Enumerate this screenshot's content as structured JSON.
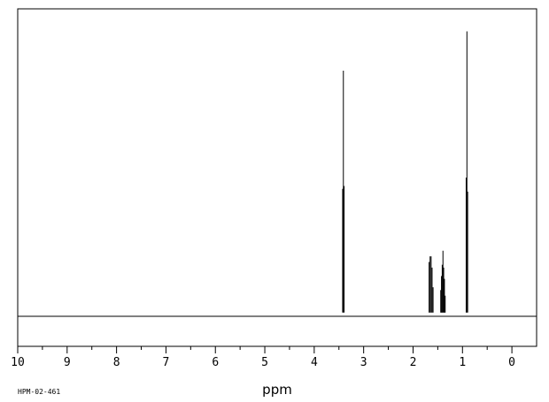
{
  "chart_data": {
    "type": "line",
    "xlabel": "ppm",
    "xlim": [
      10,
      -0.5
    ],
    "x_reversed": true,
    "ylim": [
      -0.12,
      1.08
    ],
    "grid": false,
    "x_ticks": [
      "10",
      "9",
      "8",
      "7",
      "6",
      "5",
      "4",
      "3",
      "2",
      "1",
      "0"
    ],
    "x_tick_values": [
      10,
      9,
      8,
      7,
      6,
      5,
      4,
      3,
      2,
      1,
      0
    ],
    "peaks": [
      {
        "x": 3.425,
        "y": 0.44
      },
      {
        "x": 3.41,
        "y": 0.86
      },
      {
        "x": 3.395,
        "y": 0.45
      },
      {
        "x": 1.675,
        "y": 0.18
      },
      {
        "x": 1.655,
        "y": 0.2
      },
      {
        "x": 1.635,
        "y": 0.2
      },
      {
        "x": 1.615,
        "y": 0.16
      },
      {
        "x": 1.595,
        "y": 0.09
      },
      {
        "x": 1.44,
        "y": 0.08
      },
      {
        "x": 1.425,
        "y": 0.13
      },
      {
        "x": 1.41,
        "y": 0.17
      },
      {
        "x": 1.395,
        "y": 0.22
      },
      {
        "x": 1.38,
        "y": 0.16
      },
      {
        "x": 1.365,
        "y": 0.12
      },
      {
        "x": 1.35,
        "y": 0.06
      },
      {
        "x": 0.925,
        "y": 0.48
      },
      {
        "x": 0.91,
        "y": 1.0
      },
      {
        "x": 0.895,
        "y": 0.43
      }
    ]
  },
  "footer": {
    "sample_code": "HPM-02-461"
  }
}
